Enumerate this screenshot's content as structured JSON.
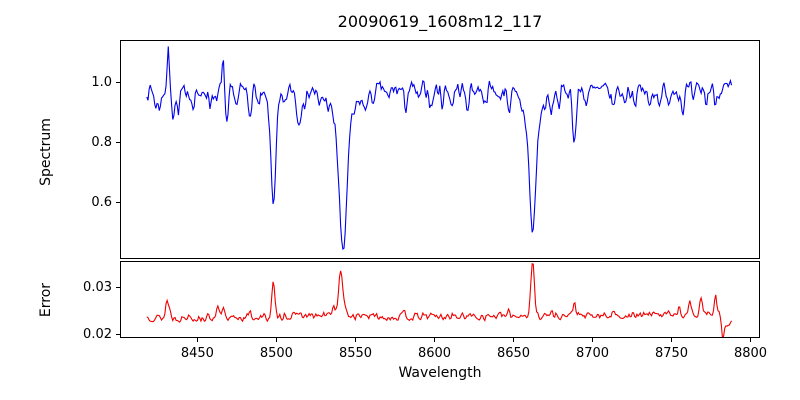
{
  "chart_data": [
    {
      "type": "line",
      "panel": "spectrum",
      "title": "20090619_1608m12_117",
      "ylabel": "Spectrum",
      "line_color": "#0000ee",
      "line_width": 1.1,
      "xlim": [
        8401,
        8806
      ],
      "ylim": [
        0.413,
        1.143
      ],
      "yticks": {
        "values": [
          1.0,
          0.8,
          0.6
        ],
        "labels": [
          "1.0",
          "0.8",
          "0.6"
        ]
      },
      "x_range": [
        8418,
        8788
      ],
      "n_points": 520,
      "seed": 7,
      "noise_amp": 0.055,
      "baseline": [
        [
          8418,
          0.972
        ],
        [
          8440,
          0.976
        ],
        [
          8470,
          0.974
        ],
        [
          8520,
          0.978
        ],
        [
          8545,
          0.976
        ],
        [
          8600,
          0.978
        ],
        [
          8650,
          0.978
        ],
        [
          8700,
          0.974
        ],
        [
          8750,
          0.976
        ],
        [
          8788,
          0.98
        ]
      ],
      "features_x_amp_sigma": [
        [
          8424.0,
          -0.055,
          1.0
        ],
        [
          8426.5,
          -0.05,
          0.8
        ],
        [
          8431.5,
          0.135,
          0.7
        ],
        [
          8434.5,
          -0.075,
          0.9
        ],
        [
          8437.8,
          -0.075,
          0.9
        ],
        [
          8443.0,
          -0.04,
          0.8
        ],
        [
          8447.0,
          -0.045,
          0.9
        ],
        [
          8452.0,
          -0.04,
          0.8
        ],
        [
          8458.0,
          -0.045,
          0.9
        ],
        [
          8462.0,
          -0.05,
          0.8
        ],
        [
          8466.2,
          0.12,
          0.7
        ],
        [
          8468.5,
          -0.13,
          1.0
        ],
        [
          8475.0,
          -0.05,
          0.9
        ],
        [
          8483.0,
          -0.07,
          1.0
        ],
        [
          8489.0,
          -0.05,
          0.8
        ],
        [
          8498.0,
          -0.31,
          1.5
        ],
        [
          8498.0,
          -0.06,
          4.5
        ],
        [
          8505.0,
          -0.045,
          0.8
        ],
        [
          8514.2,
          -0.115,
          1.3
        ],
        [
          8518.5,
          -0.05,
          0.8
        ],
        [
          8527.0,
          -0.05,
          0.9
        ],
        [
          8542.1,
          -0.42,
          2.2
        ],
        [
          8542.1,
          -0.125,
          7.0
        ],
        [
          8556.0,
          -0.06,
          0.9
        ],
        [
          8560.5,
          -0.045,
          0.8
        ],
        [
          8571.0,
          -0.04,
          0.8
        ],
        [
          8581.5,
          -0.06,
          0.9
        ],
        [
          8590.0,
          -0.045,
          0.8
        ],
        [
          8598.0,
          -0.06,
          1.0
        ],
        [
          8605.0,
          -0.04,
          0.8
        ],
        [
          8611.0,
          -0.055,
          0.9
        ],
        [
          8620.5,
          -0.065,
          0.9
        ],
        [
          8632.0,
          -0.045,
          0.8
        ],
        [
          8641.0,
          -0.045,
          0.8
        ],
        [
          8647.5,
          -0.06,
          0.9
        ],
        [
          8662.1,
          -0.36,
          1.9
        ],
        [
          8662.1,
          -0.115,
          6.0
        ],
        [
          8674.0,
          -0.065,
          1.0
        ],
        [
          8679.0,
          -0.05,
          0.8
        ],
        [
          8688.6,
          -0.17,
          1.1
        ],
        [
          8696.0,
          -0.04,
          0.8
        ],
        [
          8713.0,
          -0.055,
          1.0
        ],
        [
          8720.0,
          -0.04,
          0.8
        ],
        [
          8727.0,
          -0.045,
          0.8
        ],
        [
          8736.0,
          -0.06,
          1.0
        ],
        [
          8742.0,
          -0.04,
          0.8
        ],
        [
          8747.5,
          -0.05,
          0.9
        ],
        [
          8757.0,
          -0.065,
          1.0
        ],
        [
          8764.0,
          -0.045,
          0.8
        ],
        [
          8772.0,
          -0.045,
          0.8
        ],
        [
          8778.0,
          -0.04,
          0.8
        ]
      ],
      "notable_lines": {
        "CaII_8498_depth": 0.6,
        "CaII_8542_depth": 0.44,
        "CaII_8662_depth": 0.49,
        "spike_8431": 1.11,
        "spike_8466": 1.09
      }
    },
    {
      "type": "line",
      "panel": "error",
      "ylabel": "Error",
      "xlabel": "Wavelength",
      "line_color": "#ee0000",
      "line_width": 1.1,
      "xlim": [
        8401,
        8806
      ],
      "ylim": [
        0.01925,
        0.0357
      ],
      "yticks": {
        "values": [
          0.03,
          0.02
        ],
        "labels": [
          "0.03",
          "0.02"
        ]
      },
      "xticks": {
        "values": [
          8450,
          8500,
          8550,
          8600,
          8650,
          8700,
          8750,
          8800
        ],
        "labels": [
          "8450",
          "8500",
          "8550",
          "8600",
          "8650",
          "8700",
          "8750",
          "8800"
        ]
      },
      "x_range": [
        8418,
        8788
      ],
      "n_points": 520,
      "seed": 13,
      "noise_amp": 0.0016,
      "baseline": [
        [
          8418,
          0.0237
        ],
        [
          8440,
          0.0235
        ],
        [
          8470,
          0.0236
        ],
        [
          8500,
          0.0237
        ],
        [
          8540,
          0.0241
        ],
        [
          8570,
          0.0237
        ],
        [
          8620,
          0.0238
        ],
        [
          8660,
          0.0241
        ],
        [
          8700,
          0.0239
        ],
        [
          8740,
          0.0241
        ],
        [
          8762,
          0.0244
        ],
        [
          8776,
          0.0246
        ],
        [
          8781,
          0.024
        ],
        [
          8784,
          0.0222
        ],
        [
          8788,
          0.0227
        ]
      ],
      "features_x_amp_sigma": [
        [
          8430.8,
          0.004,
          0.8
        ],
        [
          8432.5,
          0.0015,
          0.6
        ],
        [
          8445.0,
          0.0008,
          0.8
        ],
        [
          8462.6,
          0.0028,
          0.8
        ],
        [
          8466.2,
          0.0022,
          0.7
        ],
        [
          8469.5,
          -0.001,
          0.8
        ],
        [
          8483.0,
          0.0008,
          0.8
        ],
        [
          8498.0,
          0.0072,
          0.9
        ],
        [
          8505.0,
          0.0008,
          0.7
        ],
        [
          8514.2,
          0.0012,
          0.8
        ],
        [
          8536.0,
          0.0018,
          1.2
        ],
        [
          8540.8,
          0.0092,
          1.4
        ],
        [
          8556.0,
          0.0008,
          0.8
        ],
        [
          8581.0,
          0.0007,
          0.8
        ],
        [
          8598.0,
          0.0008,
          0.8
        ],
        [
          8611.0,
          0.0006,
          0.7
        ],
        [
          8621.0,
          0.0007,
          0.7
        ],
        [
          8647.0,
          0.0007,
          0.7
        ],
        [
          8662.1,
          0.0112,
          1.1
        ],
        [
          8674.0,
          0.0009,
          0.7
        ],
        [
          8688.6,
          0.003,
          0.9
        ],
        [
          8713.0,
          0.001,
          0.8
        ],
        [
          8736.0,
          0.001,
          0.8
        ],
        [
          8748.0,
          0.0014,
          0.8
        ],
        [
          8755.0,
          0.0016,
          0.8
        ],
        [
          8761.5,
          0.0022,
          0.8
        ],
        [
          8769.0,
          0.0036,
          0.8
        ],
        [
          8778.0,
          0.0036,
          0.8
        ],
        [
          8782.5,
          -0.0047,
          0.7
        ]
      ],
      "notable_peaks": {
        "8431": 0.028,
        "8498": 0.031,
        "8541": 0.033,
        "8662": 0.0355,
        "8688": 0.027,
        "dip_8783": 0.0195
      }
    }
  ]
}
